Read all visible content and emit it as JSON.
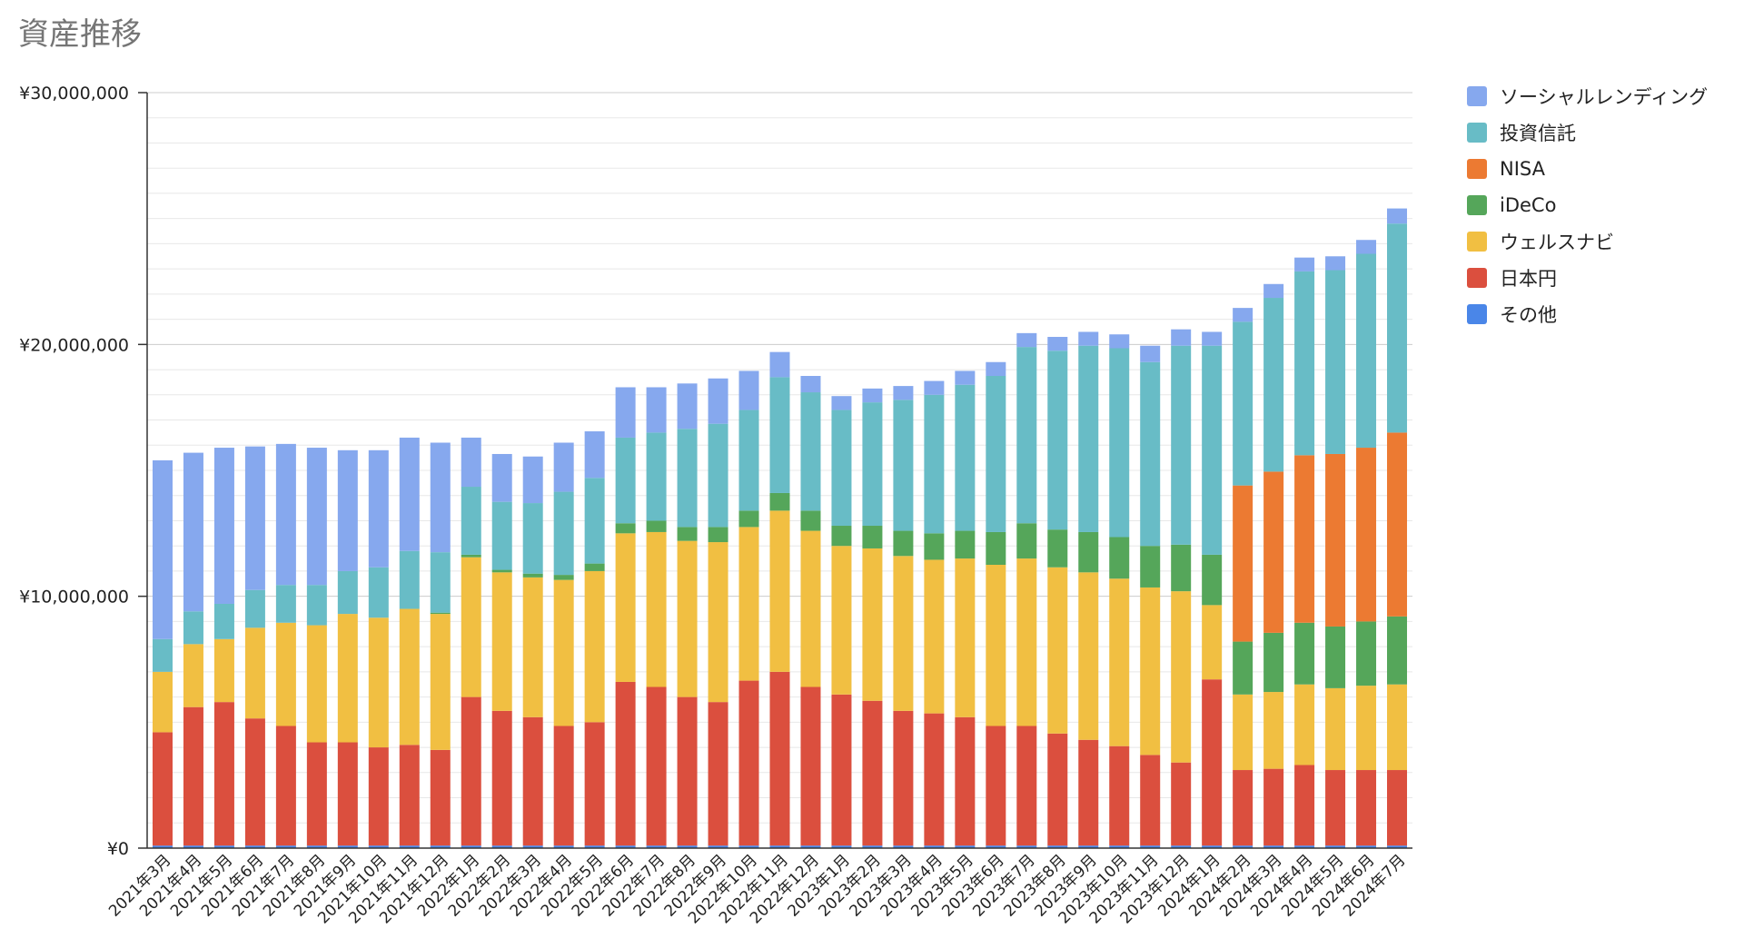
{
  "title": "資産推移",
  "chart_data": {
    "type": "bar",
    "stacked": true,
    "title": "資産推移",
    "xlabel": "",
    "ylabel": "",
    "ylim": [
      0,
      30000000
    ],
    "y_ticks": [
      0,
      10000000,
      20000000,
      30000000
    ],
    "y_tick_labels": [
      "¥0",
      "¥10,000,000",
      "¥20,000,000",
      "¥30,000,000"
    ],
    "grid": true,
    "legend_position": "right",
    "categories": [
      "2021年3月",
      "2021年4月",
      "2021年5月",
      "2021年6月",
      "2021年7月",
      "2021年8月",
      "2021年9月",
      "2021年10月",
      "2021年11月",
      "2021年12月",
      "2022年1月",
      "2022年2月",
      "2022年3月",
      "2022年4月",
      "2022年5月",
      "2022年6月",
      "2022年7月",
      "2022年8月",
      "2022年9月",
      "2022年10月",
      "2022年11月",
      "2022年12月",
      "2023年1月",
      "2023年2月",
      "2023年3月",
      "2023年4月",
      "2023年5月",
      "2023年6月",
      "2023年7月",
      "2023年8月",
      "2023年9月",
      "2023年10月",
      "2023年11月",
      "2023年12月",
      "2024年1月",
      "2024年2月",
      "2024年3月",
      "2024年4月",
      "2024年5月",
      "2024年6月",
      "2024年7月"
    ],
    "series": [
      {
        "name": "その他",
        "color": "#4a86e8",
        "values": [
          100000,
          100000,
          100000,
          100000,
          100000,
          100000,
          100000,
          100000,
          100000,
          100000,
          100000,
          100000,
          100000,
          100000,
          100000,
          100000,
          100000,
          100000,
          100000,
          100000,
          100000,
          100000,
          100000,
          100000,
          100000,
          100000,
          100000,
          100000,
          100000,
          100000,
          100000,
          100000,
          100000,
          100000,
          100000,
          100000,
          100000,
          100000,
          100000,
          100000,
          100000
        ]
      },
      {
        "name": "日本円",
        "color": "#db4f3e",
        "values": [
          4500000,
          5500000,
          5700000,
          5050000,
          4750000,
          4100000,
          4100000,
          3900000,
          4000000,
          3800000,
          5900000,
          5350000,
          5100000,
          4750000,
          4900000,
          6500000,
          6300000,
          5900000,
          5700000,
          6550000,
          6900000,
          6300000,
          6000000,
          5750000,
          5350000,
          5250000,
          5100000,
          4750000,
          4750000,
          4450000,
          4200000,
          3950000,
          3600000,
          3300000,
          6600000,
          3000000,
          3050000,
          3200000,
          3000000,
          3000000,
          3000000
        ]
      },
      {
        "name": "ウェルスナビ",
        "color": "#f1bf42",
        "values": [
          2400000,
          2500000,
          2500000,
          3600000,
          4100000,
          4650000,
          5100000,
          5150000,
          5400000,
          5400000,
          5550000,
          5500000,
          5550000,
          5800000,
          6000000,
          5900000,
          6150000,
          6200000,
          6350000,
          6100000,
          6400000,
          6200000,
          5900000,
          6050000,
          6150000,
          6100000,
          6300000,
          6400000,
          6650000,
          6600000,
          6650000,
          6650000,
          6650000,
          6800000,
          2950000,
          3000000,
          3050000,
          3200000,
          3250000,
          3350000,
          3400000
        ]
      },
      {
        "name": "iDeCo",
        "color": "#55a65a",
        "values": [
          0,
          0,
          0,
          0,
          0,
          0,
          0,
          0,
          0,
          50000,
          100000,
          100000,
          150000,
          200000,
          300000,
          400000,
          450000,
          550000,
          600000,
          650000,
          700000,
          800000,
          800000,
          900000,
          1000000,
          1050000,
          1100000,
          1300000,
          1400000,
          1500000,
          1600000,
          1650000,
          1650000,
          1850000,
          2000000,
          2100000,
          2350000,
          2450000,
          2450000,
          2550000,
          2700000
        ]
      },
      {
        "name": "NISA",
        "color": "#ec7a32",
        "values": [
          0,
          0,
          0,
          0,
          0,
          0,
          0,
          0,
          0,
          0,
          0,
          0,
          0,
          0,
          0,
          0,
          0,
          0,
          0,
          0,
          0,
          0,
          0,
          0,
          0,
          0,
          0,
          0,
          0,
          0,
          0,
          0,
          0,
          0,
          0,
          6200000,
          6400000,
          6650000,
          6850000,
          6900000,
          7300000
        ]
      },
      {
        "name": "投資信託",
        "color": "#68bcc6",
        "values": [
          1300000,
          1300000,
          1400000,
          1500000,
          1500000,
          1600000,
          1700000,
          2000000,
          2300000,
          2400000,
          2700000,
          2700000,
          2800000,
          3300000,
          3400000,
          3400000,
          3500000,
          3900000,
          4100000,
          4000000,
          4600000,
          4700000,
          4600000,
          4900000,
          5200000,
          5500000,
          5800000,
          6200000,
          7000000,
          7100000,
          7400000,
          7500000,
          7300000,
          7900000,
          8300000,
          6500000,
          6900000,
          7300000,
          7300000,
          7700000,
          8300000
        ]
      },
      {
        "name": "ソーシャルレンディング",
        "color": "#86a8ee",
        "values": [
          7100000,
          6300000,
          6200000,
          5700000,
          5600000,
          5450000,
          4800000,
          4650000,
          4500000,
          4350000,
          1950000,
          1900000,
          1850000,
          1950000,
          1850000,
          2000000,
          1800000,
          1800000,
          1800000,
          1550000,
          1000000,
          650000,
          550000,
          550000,
          550000,
          550000,
          550000,
          550000,
          550000,
          550000,
          550000,
          550000,
          650000,
          650000,
          550000,
          550000,
          550000,
          550000,
          550000,
          550000,
          600000
        ]
      }
    ]
  },
  "legend": {
    "items": [
      {
        "label": "ソーシャルレンディング",
        "color": "#86a8ee"
      },
      {
        "label": "投資信託",
        "color": "#68bcc6"
      },
      {
        "label": "NISA",
        "color": "#ec7a32"
      },
      {
        "label": "iDeCo",
        "color": "#55a65a"
      },
      {
        "label": "ウェルスナビ",
        "color": "#f1bf42"
      },
      {
        "label": "日本円",
        "color": "#db4f3e"
      },
      {
        "label": "その他",
        "color": "#4a86e8"
      }
    ]
  }
}
